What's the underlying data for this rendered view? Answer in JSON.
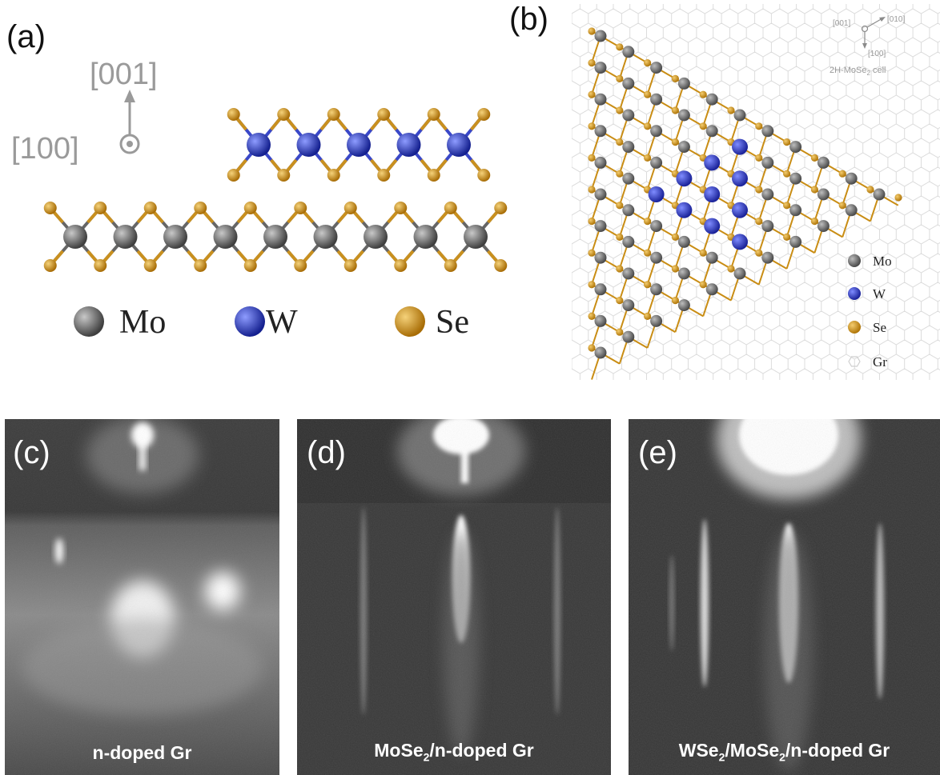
{
  "panel_a": {
    "label": "(a)",
    "axis_up": "[001]",
    "axis_in": "[100]",
    "legend": [
      {
        "name": "Mo",
        "color": "#6e6e6e"
      },
      {
        "name": "W",
        "color": "#2a3cc0"
      },
      {
        "name": "Se",
        "color": "#d4961c"
      }
    ]
  },
  "panel_b": {
    "label": "(b)",
    "axis_001": "[001]",
    "axis_010": "[010]",
    "axis_100": "[100]",
    "cell_label": "2H-MoSe",
    "cell_label_sub": "2",
    "cell_label_suffix": " cell",
    "legend": [
      {
        "name": "Mo",
        "color": "#6e6e6e"
      },
      {
        "name": "W",
        "color": "#2a3cc0"
      },
      {
        "name": "Se",
        "color": "#d4961c"
      },
      {
        "name": "Gr",
        "color": "#d9d9d9"
      }
    ]
  },
  "panel_c": {
    "label": "(c)",
    "caption": "n-doped Gr"
  },
  "panel_d": {
    "label": "(d)",
    "caption_a": "MoSe",
    "caption_sub": "2",
    "caption_b": "/n-doped Gr"
  },
  "panel_e": {
    "label": "(e)",
    "caption_a": "WSe",
    "caption_sub1": "2",
    "caption_b": "/MoSe",
    "caption_sub2": "2",
    "caption_c": "/n-doped Gr"
  }
}
